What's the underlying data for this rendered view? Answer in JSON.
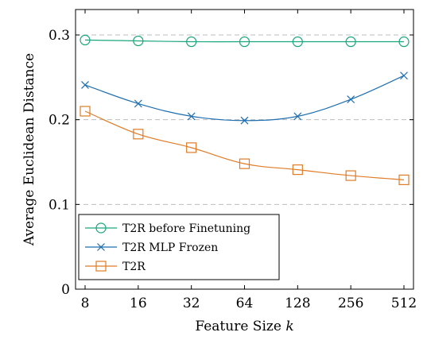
{
  "chart_data": {
    "type": "line",
    "categories": [
      "8",
      "16",
      "32",
      "64",
      "128",
      "256",
      "512"
    ],
    "xlabel": "Feature Size",
    "xlabel_var": "k",
    "ylabel": "Average Euclidean Distance",
    "ylim": [
      0,
      0.33
    ],
    "yticks": [
      0,
      0.1,
      0.2,
      0.3
    ],
    "ytick_labels": [
      "0",
      "0.1",
      "0.2",
      "0.3"
    ],
    "grid": "horizontal-dashed",
    "legend_position": "bottom-left",
    "series": [
      {
        "name": "T2R before Finetuning",
        "color": "#1aa67d",
        "marker": "circle",
        "values": [
          0.294,
          0.293,
          0.292,
          0.292,
          0.292,
          0.292,
          0.292
        ]
      },
      {
        "name": "T2R MLP Frozen",
        "color": "#1f6fb0",
        "marker": "x",
        "values": [
          0.241,
          0.219,
          0.204,
          0.199,
          0.204,
          0.224,
          0.252
        ]
      },
      {
        "name": "T2R",
        "color": "#e07b26",
        "marker": "square",
        "values": [
          0.21,
          0.183,
          0.167,
          0.148,
          0.141,
          0.134,
          0.129
        ]
      }
    ]
  }
}
